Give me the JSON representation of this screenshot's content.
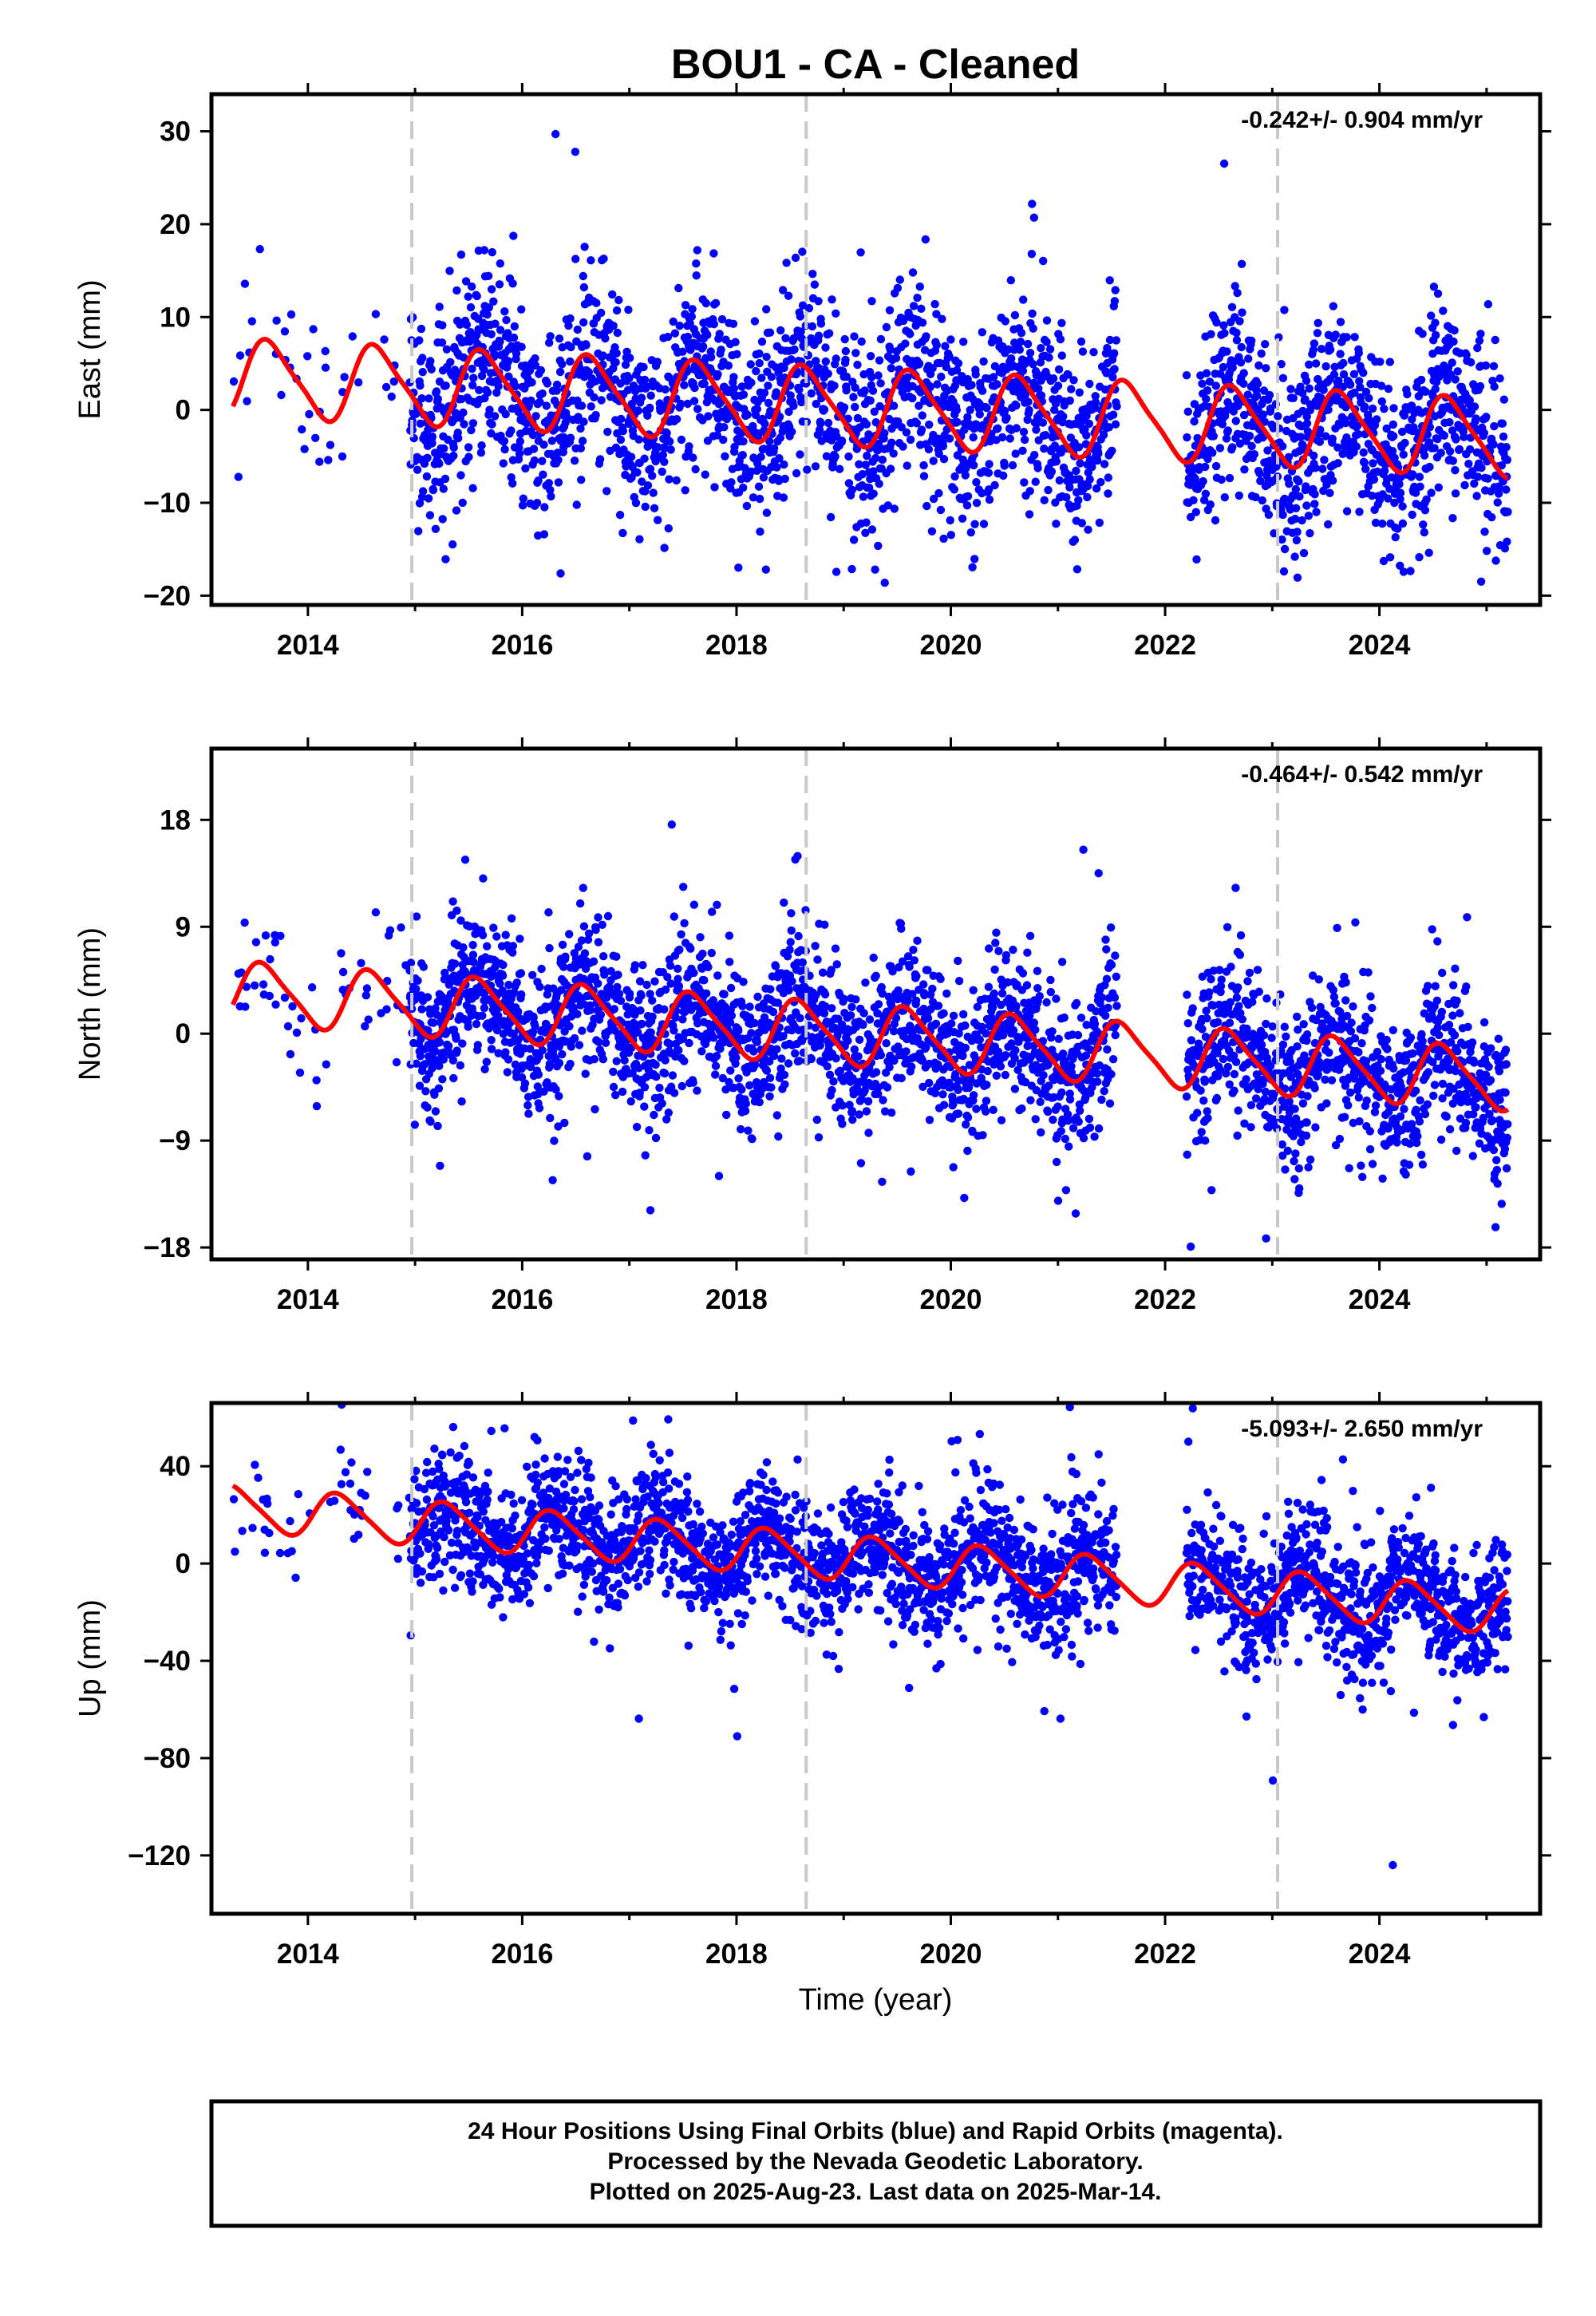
{
  "title": "BOU1  - CA - Cleaned",
  "xlabel": "Time (year)",
  "colors": {
    "points": "#0000ff",
    "model": "#ff0000",
    "breaks": "#c8c8c8",
    "frame": "#000000"
  },
  "footer": {
    "line1": "24 Hour Positions Using Final Orbits (blue) and Rapid Orbits (magenta).",
    "line2": "Processed by the Nevada Geodetic Laboratory.",
    "line3": "Plotted on 2025-Aug-23. Last data on 2025-Mar-14."
  },
  "chart_data": [
    {
      "type": "scatter",
      "component": "East",
      "ylabel": "East (mm)",
      "rate_label": "-0.242+/- 0.904 mm/yr",
      "xlim": [
        2013.1,
        2025.5
      ],
      "ylim": [
        -21,
        34
      ],
      "xticks": [
        2014,
        2016,
        2018,
        2020,
        2022,
        2024
      ],
      "yticks": [
        -20,
        -10,
        0,
        10,
        20,
        30
      ],
      "ytick_labels": [
        "−20",
        "−10",
        "0",
        "10",
        "20",
        "30"
      ],
      "breaks": [
        2014.97,
        2018.65,
        2023.05
      ],
      "data_span": [
        2013.3,
        2025.2
      ],
      "gap": [
        2021.55,
        2022.2
      ],
      "model": {
        "offset": 3.5,
        "trend": -0.55,
        "ref_year": 2013.3,
        "annual": 4.0,
        "semiannual": 0.8,
        "phase": 0.4
      },
      "scatter": {
        "sigma": 5.0,
        "outlier_sd": 12,
        "seed": 11
      }
    },
    {
      "type": "scatter",
      "component": "North",
      "ylabel": "North (mm)",
      "rate_label": "-0.464+/- 0.542 mm/yr",
      "xlim": [
        2013.1,
        2025.5
      ],
      "ylim": [
        -19,
        24
      ],
      "xticks": [
        2014,
        2016,
        2018,
        2020,
        2022,
        2024
      ],
      "yticks": [
        -18,
        -9,
        0,
        9,
        18
      ],
      "ytick_labels": [
        "−18",
        "−9",
        "0",
        "9",
        "18"
      ],
      "breaks": [
        2014.97,
        2018.65,
        2023.05
      ],
      "data_span": [
        2013.3,
        2025.2
      ],
      "gap": [
        2021.55,
        2022.2
      ],
      "model": {
        "offset": 3.5,
        "trend": -0.62,
        "ref_year": 2013.3,
        "annual": 2.5,
        "semiannual": 0.5,
        "phase": 0.35
      },
      "scatter": {
        "sigma": 3.2,
        "outlier_sd": 8,
        "seed": 23
      }
    },
    {
      "type": "scatter",
      "component": "Up",
      "ylabel": "Up (mm)",
      "rate_label": "-5.093+/- 2.650 mm/yr",
      "xlim": [
        2013.1,
        2025.5
      ],
      "ylim": [
        -144,
        66
      ],
      "xticks": [
        2014,
        2016,
        2018,
        2020,
        2022,
        2024
      ],
      "yticks": [
        -120,
        -80,
        -40,
        0,
        40
      ],
      "ytick_labels": [
        "−120",
        "−80",
        "−40",
        "0",
        "40"
      ],
      "breaks": [
        2014.97,
        2018.65,
        2023.05
      ],
      "data_span": [
        2013.3,
        2025.2
      ],
      "gap": [
        2021.55,
        2022.2
      ],
      "model": {
        "offset": 23,
        "trend": -3.6,
        "ref_year": 2013.3,
        "annual": 9.0,
        "semiannual": 1.5,
        "phase": 0.05
      },
      "scatter": {
        "sigma": 13,
        "outlier_sd": 40,
        "seed": 37
      }
    }
  ]
}
